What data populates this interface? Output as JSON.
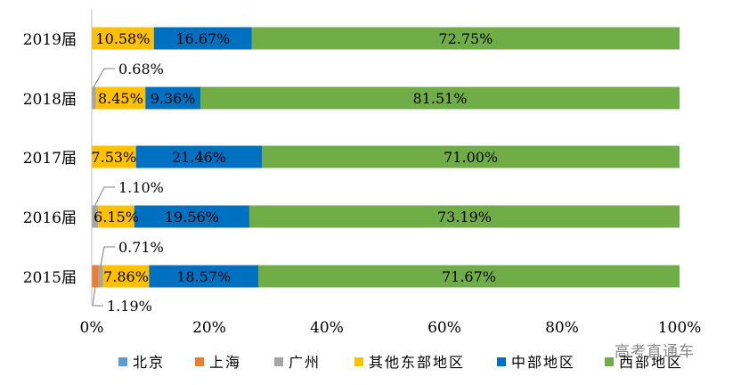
{
  "chart_data": {
    "type": "bar",
    "orientation": "horizontal",
    "stacked": true,
    "categories": [
      "2019届",
      "2018届",
      "2017届",
      "2016届",
      "2015届"
    ],
    "series": [
      {
        "name": "北京",
        "color": "#5B9BD5",
        "values": [
          0,
          0,
          0,
          0,
          0
        ]
      },
      {
        "name": "上海",
        "color": "#ED7D31",
        "values": [
          0,
          0,
          0,
          0,
          1.19
        ]
      },
      {
        "name": "广州",
        "color": "#A5A5A5",
        "values": [
          0,
          0.68,
          0,
          1.1,
          0.71
        ]
      },
      {
        "name": "其他东部地区",
        "color": "#FFC000",
        "values": [
          10.58,
          8.45,
          7.53,
          6.15,
          7.86
        ]
      },
      {
        "name": "中部地区",
        "color": "#0070C0",
        "values": [
          16.67,
          9.36,
          21.46,
          19.56,
          18.57
        ]
      },
      {
        "name": "西部地区",
        "color": "#70AD47",
        "values": [
          72.75,
          81.51,
          71.0,
          73.19,
          71.67
        ]
      }
    ],
    "data_labels": [
      [
        "",
        "",
        "",
        "10.58%",
        "16.67%",
        "72.75%"
      ],
      [
        "",
        "",
        "0.68%",
        "8.45%",
        "9.36%",
        "81.51%"
      ],
      [
        "",
        "",
        "",
        "7.53%",
        "21.46%",
        "71.00%"
      ],
      [
        "",
        "",
        "1.10%",
        "6.15%",
        "19.56%",
        "73.19%"
      ],
      [
        "",
        "1.19%",
        "0.71%",
        "7.86%",
        "18.57%",
        "71.67%"
      ]
    ],
    "xlim": [
      0,
      100
    ],
    "x_ticks": [
      "0%",
      "20%",
      "40%",
      "60%",
      "80%",
      "100%"
    ],
    "grid": false,
    "legend_position": "bottom"
  },
  "watermark": "高考直通车"
}
